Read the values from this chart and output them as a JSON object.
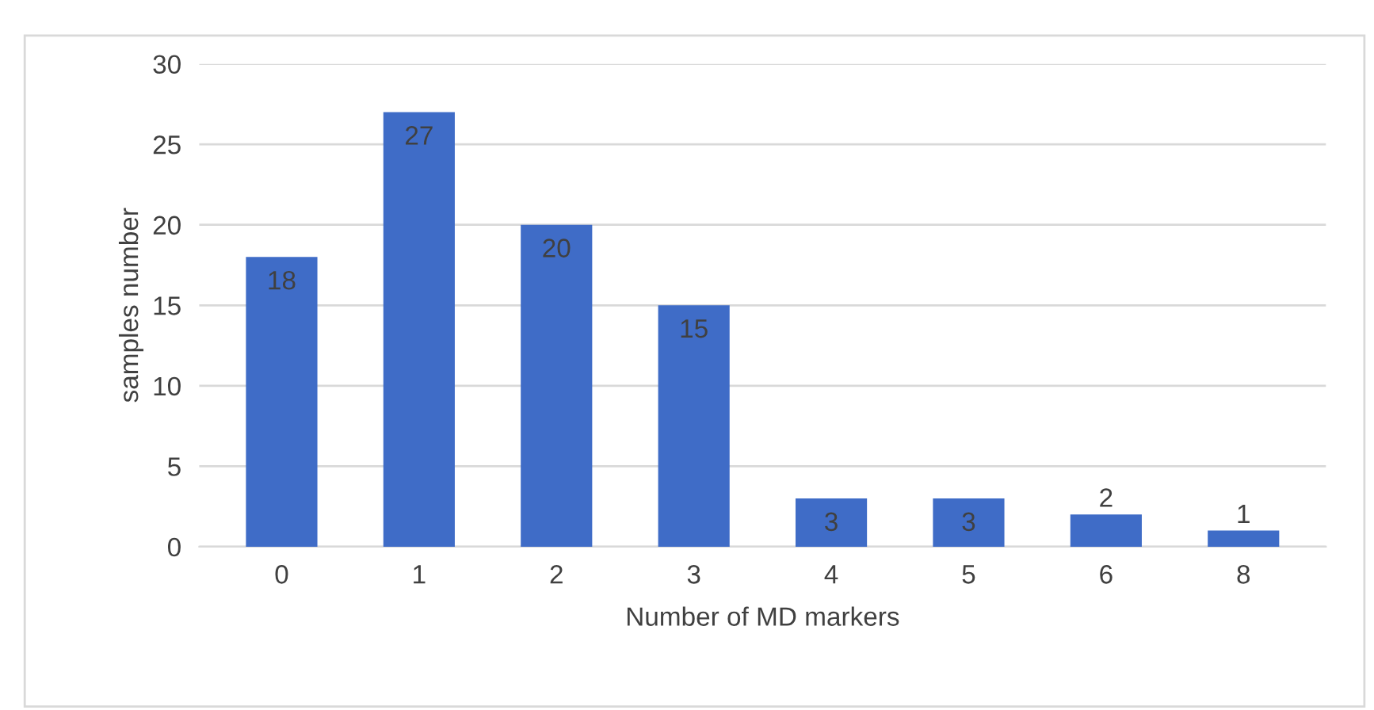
{
  "chart_data": {
    "type": "bar",
    "categories": [
      "0",
      "1",
      "2",
      "3",
      "4",
      "5",
      "6",
      "8"
    ],
    "values": [
      18,
      27,
      20,
      15,
      3,
      3,
      2,
      1
    ],
    "color": "#3f6cc7",
    "xlabel": "Number of MD markers",
    "ylabel": "samples number",
    "ylim": [
      0,
      30
    ],
    "yticks": [
      0,
      5,
      10,
      15,
      20,
      25,
      30
    ],
    "grid": "y",
    "data_labels": true
  }
}
